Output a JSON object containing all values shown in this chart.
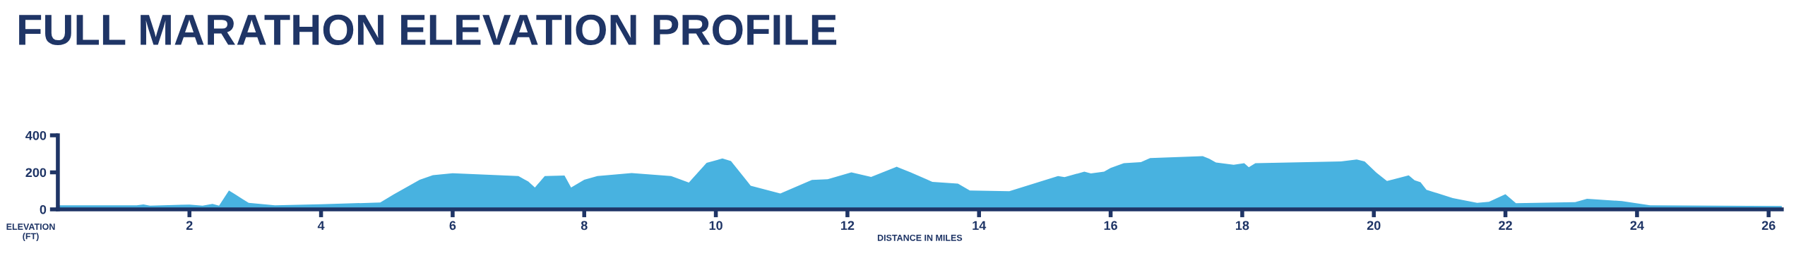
{
  "chart_data": {
    "type": "area",
    "title": "FULL MARATHON ELEVATION PROFILE",
    "xlabel": "DISTANCE IN MILES",
    "ylabel": "ELEVATION\n(FT)",
    "x": [
      0,
      1.2,
      1.3,
      1.4,
      2.0,
      2.2,
      2.35,
      2.45,
      2.6,
      2.7,
      2.8,
      2.9,
      3.3,
      4.0,
      4.9,
      5.1,
      5.2,
      5.5,
      5.7,
      6.0,
      7.0,
      7.15,
      7.25,
      7.4,
      7.7,
      7.8,
      8.0,
      8.2,
      8.72,
      9.32,
      9.59,
      9.86,
      10.1,
      10.23,
      10.53,
      10.98,
      11.46,
      11.7,
      12.06,
      12.36,
      12.75,
      12.96,
      13.29,
      13.68,
      13.86,
      14.46,
      15.2,
      15.3,
      15.6,
      15.7,
      15.9,
      16.0,
      16.2,
      16.46,
      16.6,
      17.4,
      17.5,
      17.6,
      17.87,
      18.03,
      18.1,
      18.2,
      19.5,
      19.74,
      19.86,
      20.04,
      20.2,
      20.53,
      20.62,
      20.71,
      20.8,
      21.2,
      21.57,
      21.75,
      22.0,
      22.16,
      23.06,
      23.24,
      23.77,
      24.2,
      26.2
    ],
    "series": [
      {
        "color": "#48b2e0",
        "values": [
          22,
          22,
          27,
          20,
          26,
          20,
          30,
          20,
          102,
          80,
          57,
          35,
          22,
          28,
          37,
          80,
          100,
          160,
          185,
          195,
          180,
          150,
          118,
          180,
          183,
          118,
          160,
          180,
          196,
          180,
          145,
          251,
          275,
          261,
          128,
          86,
          159,
          163,
          200,
          175,
          230,
          200,
          149,
          139,
          102,
          98,
          180,
          174,
          204,
          194,
          204,
          224,
          249,
          255,
          277,
          288,
          273,
          253,
          241,
          249,
          228,
          249,
          259,
          269,
          259,
          198,
          153,
          184,
          157,
          147,
          106,
          61,
          35,
          41,
          82,
          33,
          39,
          57,
          45,
          22,
          18
        ]
      }
    ],
    "xlim": [
      0,
      26.2
    ],
    "ylim": [
      0,
      400
    ],
    "xticks": [
      2,
      4,
      6,
      8,
      10,
      12,
      14,
      16,
      18,
      20,
      22,
      24,
      26
    ],
    "yticks": [
      0,
      200,
      400
    ],
    "grid": false,
    "legend": false
  }
}
